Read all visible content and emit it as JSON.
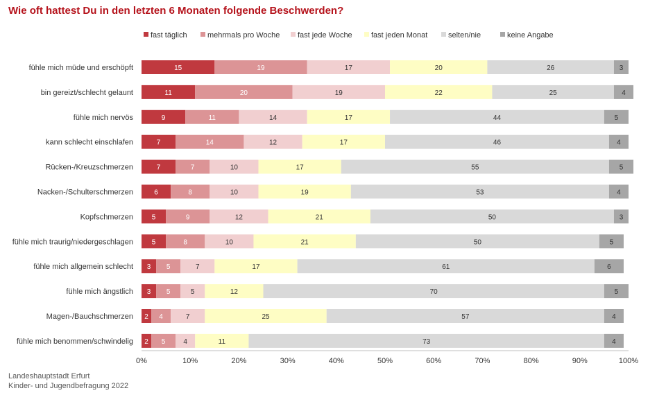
{
  "title": "Wie oft hattest Du in den letzten 6 Monaten folgende Beschwerden?",
  "source": {
    "line1": "Landeshauptstadt Erfurt",
    "line2": "Kinder- und Jugendbefragung 2022"
  },
  "chart_data": {
    "type": "bar",
    "orientation": "horizontal",
    "stacked": "100%",
    "title": "Wie oft hattest Du in den letzten 6 Monaten folgende Beschwerden?",
    "legend_position": "top",
    "grid": false,
    "xlim": [
      0,
      100
    ],
    "x_ticks": [
      "0%",
      "10%",
      "20%",
      "30%",
      "40%",
      "50%",
      "60%",
      "70%",
      "80%",
      "90%",
      "100%"
    ],
    "categories": [
      "fühle mich müde und erschöpft",
      "bin gereizt/schlecht gelaunt",
      "fühle mich nervös",
      "kann schlecht einschlafen",
      "Rücken-/Kreuzschmerzen",
      "Nacken-/Schulterschmerzen",
      "Kopfschmerzen",
      "fühle mich traurig/niedergeschlagen",
      "fühle mich allgemein schlecht",
      "fühle mich ängstlich",
      "Magen-/Bauchschmerzen",
      "fühle mich benommen/schwindelig"
    ],
    "series": [
      {
        "name": "fast täglich",
        "color": "#c0393f",
        "label_color": "#ffffff",
        "values": [
          15,
          11,
          9,
          7,
          7,
          6,
          5,
          5,
          3,
          3,
          2,
          2
        ]
      },
      {
        "name": "mehrmals pro Woche",
        "color": "#dc9496",
        "label_color": "#ffffff",
        "values": [
          19,
          20,
          11,
          14,
          7,
          8,
          9,
          8,
          5,
          5,
          4,
          5
        ]
      },
      {
        "name": "fast jede Woche",
        "color": "#f1cfd0",
        "label_color": "#333333",
        "values": [
          17,
          19,
          14,
          12,
          10,
          10,
          12,
          10,
          7,
          5,
          7,
          4
        ]
      },
      {
        "name": "fast jeden Monat",
        "color": "#fefdc4",
        "label_color": "#333333",
        "values": [
          20,
          22,
          17,
          17,
          17,
          19,
          21,
          21,
          17,
          12,
          25,
          11
        ]
      },
      {
        "name": "selten/nie",
        "color": "#d9d9d9",
        "label_color": "#333333",
        "values": [
          26,
          25,
          44,
          46,
          55,
          53,
          50,
          50,
          61,
          70,
          57,
          73
        ]
      },
      {
        "name": "keine Angabe",
        "color": "#a6a6a6",
        "label_color": "#333333",
        "values": [
          3,
          4,
          5,
          4,
          5,
          4,
          3,
          5,
          6,
          5,
          4,
          4
        ]
      }
    ]
  }
}
